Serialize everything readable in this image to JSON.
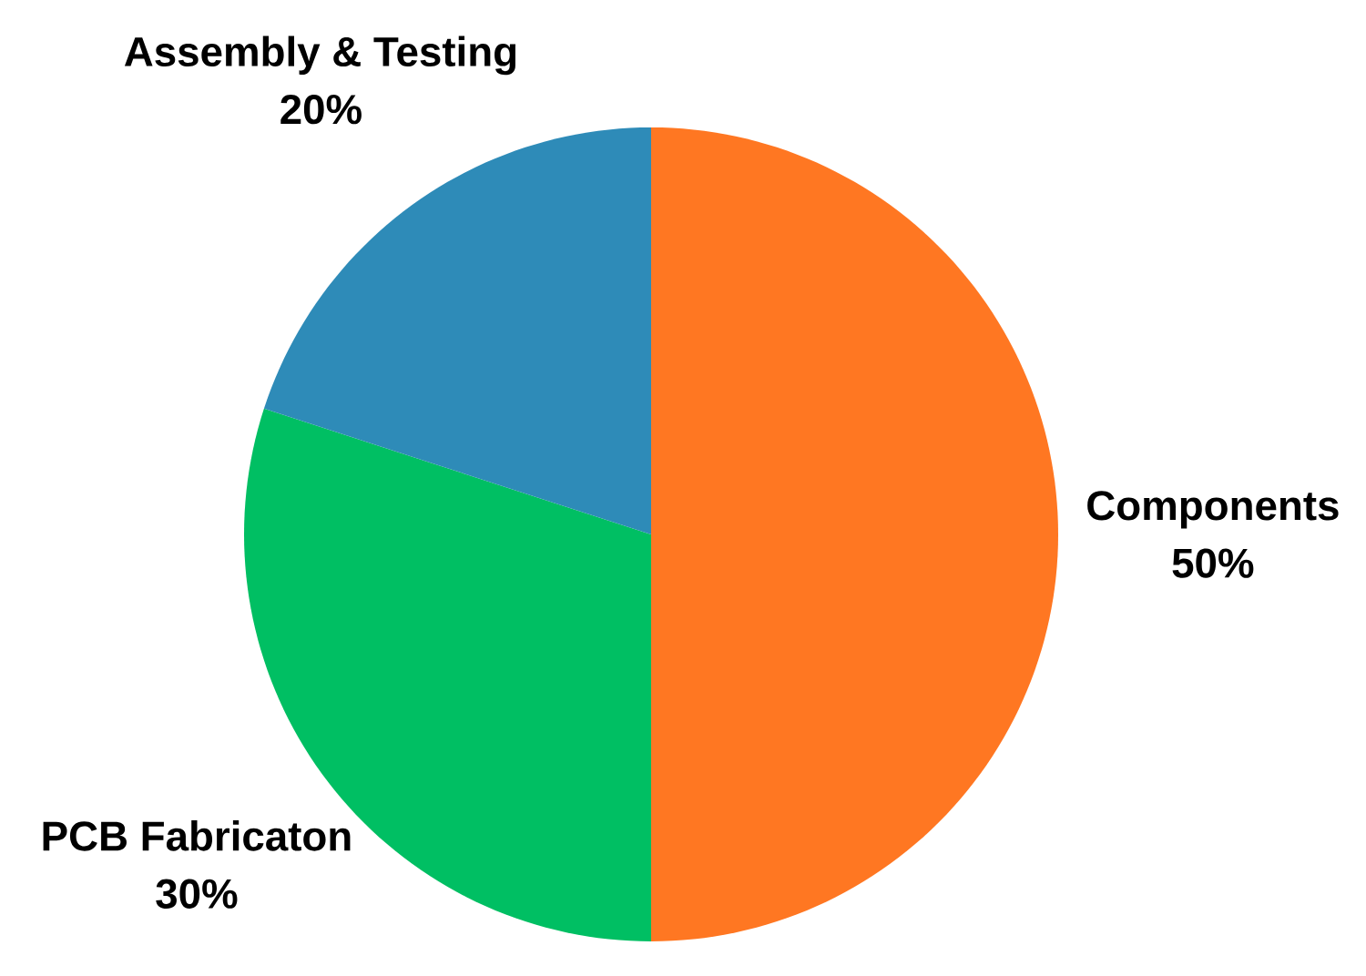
{
  "chart_data": {
    "type": "pie",
    "categories": [
      "Components",
      "PCB Fabricaton",
      "Assembly & Testing"
    ],
    "values": [
      50,
      30,
      20
    ],
    "colors": [
      "#ff7722",
      "#00bf63",
      "#2e8bb8"
    ],
    "value_labels": [
      "50%",
      "30%",
      "20%"
    ]
  }
}
